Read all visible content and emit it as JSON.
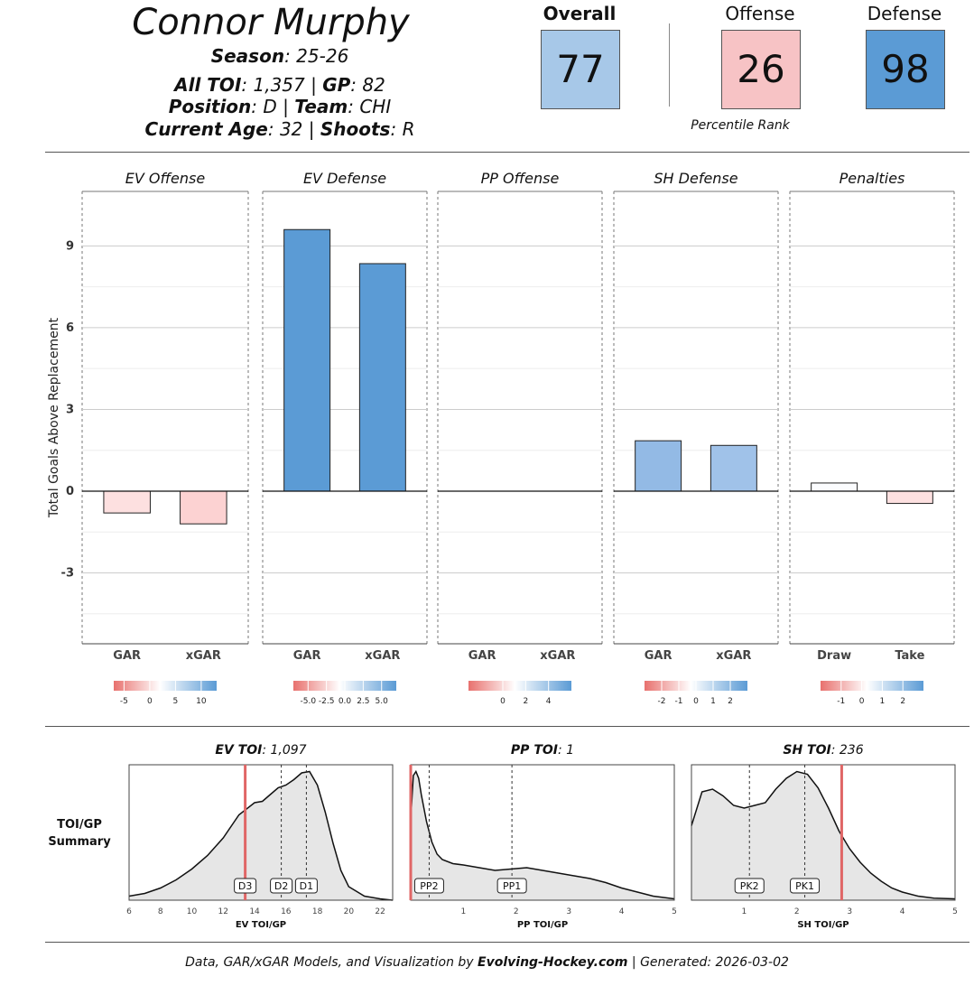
{
  "header": {
    "player_name": "Connor Murphy",
    "season_label": "Season",
    "season_value": "25-26",
    "toi_label": "All TOI",
    "toi_value": "1,357",
    "gp_label": "GP",
    "gp_value": "82",
    "position_label": "Position",
    "position_value": "D",
    "team_label": "Team",
    "team_value": "CHI",
    "age_label": "Current Age",
    "age_value": "32",
    "shoots_label": "Shoots",
    "shoots_value": "R"
  },
  "percentiles": {
    "caption": "Percentile Rank",
    "items": [
      {
        "label": "Overall",
        "value": "77",
        "color": "#a7c8e8"
      },
      {
        "label": "Offense",
        "value": "26",
        "color": "#f7c3c5"
      },
      {
        "label": "Defense",
        "value": "98",
        "color": "#5b9bd5"
      }
    ]
  },
  "chart_data": [
    {
      "type": "bar",
      "ylabel": "Total Goals Above Replacement",
      "ylim": [
        -5.6,
        11
      ],
      "yticks": [
        -3,
        0,
        3,
        6,
        9
      ],
      "grid": true,
      "panels": [
        {
          "title": "EV Offense",
          "categories": [
            "GAR",
            "xGAR"
          ],
          "values": [
            -0.8,
            -1.2
          ],
          "colors": [
            "#fde0e0",
            "#fcd2d2"
          ],
          "legend": {
            "min": -7,
            "max": 13,
            "ticks": [
              -5,
              0,
              5,
              10
            ],
            "tick_labels": [
              "-5",
              "0",
              "5",
              "10"
            ]
          }
        },
        {
          "title": "EV Defense",
          "categories": [
            "GAR",
            "xGAR"
          ],
          "values": [
            9.6,
            8.35
          ],
          "colors": [
            "#5b9bd5",
            "#5b9bd5"
          ],
          "legend": {
            "min": -7,
            "max": 7,
            "ticks": [
              -5,
              -2.5,
              0,
              2.5,
              5
            ],
            "tick_labels": [
              "-5.0",
              "-2.5",
              "0.0",
              "2.5",
              "5.0"
            ]
          }
        },
        {
          "title": "PP Offense",
          "categories": [
            "GAR",
            "xGAR"
          ],
          "values": [
            0,
            0
          ],
          "colors": [
            "#ffffff",
            "#ffffff"
          ],
          "legend": {
            "min": -3,
            "max": 6,
            "ticks": [
              0,
              2,
              4
            ],
            "tick_labels": [
              "0",
              "2",
              "4"
            ]
          }
        },
        {
          "title": "SH Defense",
          "categories": [
            "GAR",
            "xGAR"
          ],
          "values": [
            1.85,
            1.68
          ],
          "colors": [
            "#93bae5",
            "#a0c2e9"
          ],
          "legend": {
            "min": -3,
            "max": 3,
            "ticks": [
              -2,
              -1,
              0,
              1,
              2
            ],
            "tick_labels": [
              "-2",
              "-1",
              "0",
              "1",
              "2"
            ]
          }
        },
        {
          "title": "Penalties",
          "categories": [
            "Draw",
            "Take"
          ],
          "values": [
            0.3,
            -0.45
          ],
          "colors": [
            "#fbfcfe",
            "#fde0e0"
          ],
          "legend": {
            "min": -2,
            "max": 3,
            "ticks": [
              -1,
              0,
              1,
              2
            ],
            "tick_labels": [
              "-1",
              "0",
              "1",
              "2"
            ]
          }
        }
      ]
    },
    {
      "type": "area",
      "row_label": "TOI/GP Summary",
      "panels": [
        {
          "title_label": "EV TOI",
          "title_value": "1,097",
          "xlabel": "EV TOI/GP",
          "xlim": [
            6,
            22.8
          ],
          "xticks": [
            6,
            8,
            10,
            12,
            14,
            16,
            18,
            20,
            22
          ],
          "player_value": 13.4,
          "markers": [
            {
              "label": "D3",
              "x": 13.4
            },
            {
              "label": "D2",
              "x": 15.7
            },
            {
              "label": "D1",
              "x": 17.3
            }
          ],
          "density": {
            "x": [
              6,
              7,
              8,
              9,
              10,
              11,
              12,
              13,
              14,
              14.5,
              15,
              15.5,
              16,
              16.5,
              17,
              17.5,
              18,
              18.5,
              19,
              19.5,
              20,
              21,
              22,
              22.8
            ],
            "y": [
              0.03,
              0.05,
              0.09,
              0.15,
              0.23,
              0.33,
              0.46,
              0.63,
              0.72,
              0.73,
              0.78,
              0.83,
              0.85,
              0.89,
              0.94,
              0.95,
              0.85,
              0.65,
              0.42,
              0.22,
              0.1,
              0.03,
              0.01,
              0.0
            ]
          }
        },
        {
          "title_label": "PP TOI",
          "title_value": "1",
          "xlabel": "PP TOI/GP",
          "xlim": [
            0,
            5
          ],
          "xticks": [
            1,
            2,
            3,
            4,
            5
          ],
          "player_value": 0.0,
          "markers": [
            {
              "label": "PP2",
              "x": 0.35
            },
            {
              "label": "PP1",
              "x": 1.92
            }
          ],
          "density": {
            "x": [
              0,
              0.05,
              0.1,
              0.15,
              0.2,
              0.3,
              0.4,
              0.5,
              0.6,
              0.8,
              1.0,
              1.3,
              1.6,
              1.9,
              2.2,
              2.5,
              2.8,
              3.1,
              3.4,
              3.7,
              4.0,
              4.3,
              4.6,
              5.0
            ],
            "y": [
              0.6,
              0.92,
              0.95,
              0.9,
              0.78,
              0.58,
              0.43,
              0.34,
              0.3,
              0.27,
              0.26,
              0.24,
              0.22,
              0.23,
              0.24,
              0.22,
              0.2,
              0.18,
              0.16,
              0.13,
              0.09,
              0.06,
              0.03,
              0.01
            ]
          }
        },
        {
          "title_label": "SH TOI",
          "title_value": "236",
          "xlabel": "SH TOI/GP",
          "xlim": [
            0,
            5
          ],
          "xticks": [
            1,
            2,
            3,
            4,
            5
          ],
          "player_value": 2.85,
          "markers": [
            {
              "label": "PK2",
              "x": 1.1
            },
            {
              "label": "PK1",
              "x": 2.15
            }
          ],
          "density": {
            "x": [
              0,
              0.2,
              0.4,
              0.6,
              0.8,
              1.0,
              1.2,
              1.4,
              1.6,
              1.8,
              2.0,
              2.2,
              2.4,
              2.6,
              2.8,
              3.0,
              3.2,
              3.4,
              3.6,
              3.8,
              4.0,
              4.3,
              4.6,
              5.0
            ],
            "y": [
              0.55,
              0.8,
              0.82,
              0.77,
              0.7,
              0.68,
              0.7,
              0.72,
              0.82,
              0.9,
              0.95,
              0.93,
              0.83,
              0.68,
              0.51,
              0.38,
              0.28,
              0.2,
              0.14,
              0.09,
              0.06,
              0.03,
              0.015,
              0.01
            ]
          }
        }
      ]
    }
  ],
  "footer": {
    "prefix": "Data, GAR/xGAR Models, and Visualization by ",
    "brand": "Evolving-Hockey.com",
    "suffix": " | Generated: 2026-03-02"
  }
}
